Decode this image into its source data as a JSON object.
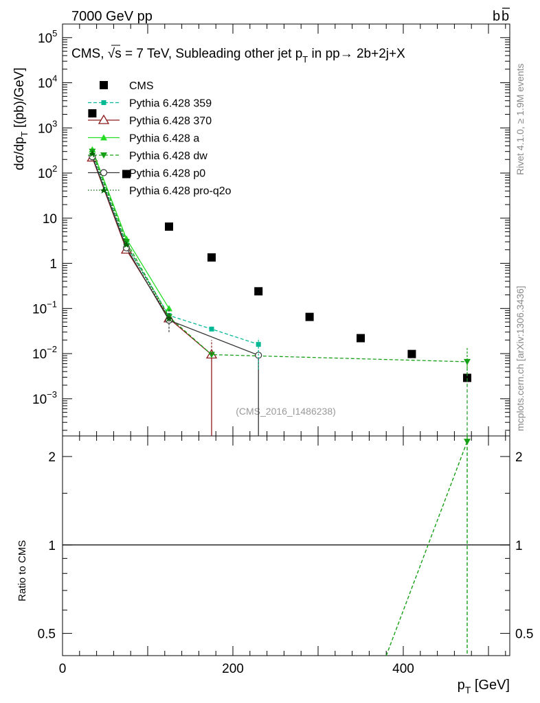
{
  "header": {
    "energy_label": "7000 GeV pp",
    "process_label": "b",
    "process_label_bar": "b"
  },
  "side_labels": {
    "rivet": "Rivet 4.1.0, ≥ 1.9M events",
    "mcplots": "mcplots.cern.ch [arXiv:1306.3436]"
  },
  "watermark": "(CMS_2016_I1486238)",
  "plot_title": {
    "prefix": "CMS, ",
    "sqrt_s": "√s = 7 TeV, Subleading other jet p",
    "sub": "T",
    "suffix": " in pp→  2b+2j+X"
  },
  "colors": {
    "cms": "#000000",
    "p359": "#00b894",
    "p370": "#8b1a1a",
    "pa": "#22dd22",
    "pdw": "#15a015",
    "pp0": "#333333",
    "pq2o": "#006400"
  },
  "chart_data": [
    {
      "type": "scatter",
      "panel": "main",
      "ylabel_main": "dσ/dp",
      "ylabel_sub": "T",
      "ylabel_unit": " [(pb)/GeV]",
      "xlim": [
        0,
        525
      ],
      "ylim": [
        0.00015,
        200000
      ],
      "yscale": "log",
      "y_ticks": [
        {
          "v": 100000,
          "label": "10",
          "sup": "5"
        },
        {
          "v": 10000,
          "label": "10",
          "sup": "4"
        },
        {
          "v": 1000,
          "label": "10",
          "sup": "3"
        },
        {
          "v": 100,
          "label": "10",
          "sup": "2"
        },
        {
          "v": 10,
          "label": "10",
          "sup": ""
        },
        {
          "v": 1,
          "label": "1",
          "sup": ""
        },
        {
          "v": 0.1,
          "label": "10",
          "sup": "−1"
        },
        {
          "v": 0.01,
          "label": "10",
          "sup": "−2"
        },
        {
          "v": 0.001,
          "label": "10",
          "sup": "−3"
        }
      ],
      "legend_position": "top-left",
      "series": [
        {
          "name": "CMS",
          "key": "cms",
          "style": "square",
          "x": [
            35,
            75,
            125,
            175,
            230,
            290,
            350,
            410,
            475
          ],
          "y": [
            2100,
            95,
            6.5,
            1.35,
            0.24,
            0.065,
            0.022,
            0.0098,
            0.0029
          ]
        },
        {
          "name": "Pythia 6.428 359",
          "key": "p359",
          "style": "dash-square",
          "x": [
            35,
            75,
            125,
            175,
            230
          ],
          "y": [
            240,
            2.5,
            0.07,
            0.035,
            0.016
          ]
        },
        {
          "name": "Pythia 6.428 370",
          "key": "p370",
          "style": "solid-triangle-open",
          "x": [
            35,
            75,
            125,
            175,
            175
          ],
          "y": [
            220,
            2.0,
            0.06,
            0.0095,
            0.00015
          ]
        },
        {
          "name": "Pythia 6.428 a",
          "key": "pa",
          "style": "solid-triangle",
          "x": [
            35,
            75,
            125
          ],
          "y": [
            330,
            3.5,
            0.1
          ]
        },
        {
          "name": "Pythia 6.428 dw",
          "key": "pdw",
          "style": "dash-triangle-down",
          "x": [
            35,
            75,
            125,
            175,
            475
          ],
          "y": [
            300,
            3.0,
            0.065,
            0.0095,
            0.0066
          ]
        },
        {
          "name": "Pythia 6.428 p0",
          "key": "pp0",
          "style": "solid-circle-open",
          "x": [
            35,
            75,
            125,
            230,
            230
          ],
          "y": [
            230,
            2.2,
            0.055,
            0.0092,
            0.00015
          ]
        },
        {
          "name": "Pythia 6.428 pro-q2o",
          "key": "pq2o",
          "style": "dot-star",
          "x": [
            35,
            75,
            125
          ],
          "y": [
            270,
            2.6,
            0.06
          ]
        }
      ]
    },
    {
      "type": "line",
      "panel": "ratio",
      "ylabel": "Ratio to CMS",
      "xlabel_main": "p",
      "xlabel_sub": "T",
      "xlabel_unit": " [GeV]",
      "xlim": [
        0,
        525
      ],
      "ylim": [
        0.42,
        2.35
      ],
      "yscale": "log",
      "y_ticks": [
        {
          "v": 0.5,
          "label": "0.5"
        },
        {
          "v": 1,
          "label": "1"
        },
        {
          "v": 2,
          "label": "2"
        }
      ],
      "x_ticks": [
        {
          "v": 0,
          "label": "0"
        },
        {
          "v": 200,
          "label": "200"
        },
        {
          "v": 400,
          "label": "400"
        }
      ],
      "series": [
        {
          "name": "Pythia 6.428 dw",
          "key": "pdw",
          "style": "dash-triangle-down",
          "x": [
            380,
            475
          ],
          "y": [
            0.42,
            2.25
          ]
        }
      ]
    }
  ]
}
